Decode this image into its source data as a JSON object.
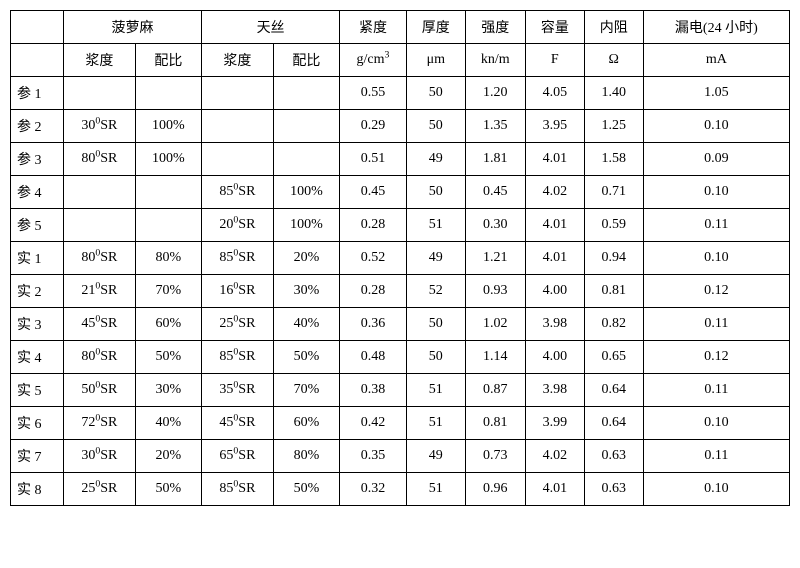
{
  "header1": {
    "bolu": "菠萝麻",
    "tiansi": "天丝",
    "jindu": "紧度",
    "houdu": "厚度",
    "qiangdu": "强度",
    "rongliang": "容量",
    "neizu": "内阻",
    "loudian": "漏电(24 小时)"
  },
  "header2": {
    "jiangdu": "浆度",
    "peibi": "配比",
    "jindu_u": "",
    "houdu_u": "μm",
    "qiangdu_u": "kn/m",
    "rongliang_u": "F",
    "neizu_u": "Ω",
    "loudian_u": "mA"
  },
  "rows": [
    {
      "label": "参 1",
      "bj": "",
      "bp": "",
      "tj": "",
      "tp": "",
      "jd": "0.55",
      "hd": "50",
      "qd": "1.20",
      "rl": "4.05",
      "nz": "1.40",
      "ld": "1.05"
    },
    {
      "label": "参 2",
      "bj": "",
      "bp": "100%",
      "tj": "",
      "tp": "",
      "jd": "0.29",
      "hd": "50",
      "qd": "1.35",
      "rl": "3.95",
      "nz": "1.25",
      "ld": "0.10"
    },
    {
      "label": "参 3",
      "bj": "",
      "bp": "100%",
      "tj": "",
      "tp": "",
      "jd": "0.51",
      "hd": "49",
      "qd": "1.81",
      "rl": "4.01",
      "nz": "1.58",
      "ld": "0.09"
    },
    {
      "label": "参 4",
      "bj": "",
      "bp": "",
      "tj": "",
      "tp": "100%",
      "jd": "0.45",
      "hd": "50",
      "qd": "0.45",
      "rl": "4.02",
      "nz": "0.71",
      "ld": "0.10"
    },
    {
      "label": "参 5",
      "bj": "",
      "bp": "",
      "tj": "",
      "tp": "100%",
      "jd": "0.28",
      "hd": "51",
      "qd": "0.30",
      "rl": "4.01",
      "nz": "0.59",
      "ld": "0.11"
    },
    {
      "label": "实 1",
      "bj": "",
      "bp": "80%",
      "tj": "",
      "tp": "20%",
      "jd": "0.52",
      "hd": "49",
      "qd": "1.21",
      "rl": "4.01",
      "nz": "0.94",
      "ld": "0.10"
    },
    {
      "label": "实 2",
      "bj": "",
      "bp": "70%",
      "tj": "",
      "tp": "30%",
      "jd": "0.28",
      "hd": "52",
      "qd": "0.93",
      "rl": "4.00",
      "nz": "0.81",
      "ld": "0.12"
    },
    {
      "label": "实 3",
      "bj": "",
      "bp": "60%",
      "tj": "",
      "tp": "40%",
      "jd": "0.36",
      "hd": "50",
      "qd": "1.02",
      "rl": "3.98",
      "nz": "0.82",
      "ld": "0.11"
    },
    {
      "label": "实 4",
      "bj": "",
      "bp": "50%",
      "tj": "",
      "tp": "50%",
      "jd": "0.48",
      "hd": "50",
      "qd": "1.14",
      "rl": "4.00",
      "nz": "0.65",
      "ld": "0.12"
    },
    {
      "label": "实 5",
      "bj": "",
      "bp": "30%",
      "tj": "",
      "tp": "70%",
      "jd": "0.38",
      "hd": "51",
      "qd": "0.87",
      "rl": "3.98",
      "nz": "0.64",
      "ld": "0.11"
    },
    {
      "label": "实 6",
      "bj": "",
      "bp": "40%",
      "tj": "",
      "tp": "60%",
      "jd": "0.42",
      "hd": "51",
      "qd": "0.81",
      "rl": "3.99",
      "nz": "0.64",
      "ld": "0.10"
    },
    {
      "label": "实 7",
      "bj": "",
      "bp": "20%",
      "tj": "",
      "tp": "80%",
      "jd": "0.35",
      "hd": "49",
      "qd": "0.73",
      "rl": "4.02",
      "nz": "0.63",
      "ld": "0.11"
    },
    {
      "label": "实 8",
      "bj": "",
      "bp": "50%",
      "tj": "",
      "tp": "50%",
      "jd": "0.32",
      "hd": "51",
      "qd": "0.96",
      "rl": "4.01",
      "nz": "0.63",
      "ld": "0.10"
    }
  ],
  "sr_values": {
    "r1_bj": "30",
    "r2_bj": "80",
    "r3_tj": "85",
    "r4_tj": "20",
    "r5_bj": "80",
    "r5_tj": "85",
    "r6_bj": "21",
    "r6_tj": "16",
    "r7_bj": "45",
    "r7_tj": "25",
    "r8_bj": "80",
    "r8_tj": "85",
    "r9_bj": "50",
    "r9_tj": "35",
    "r10_bj": "72",
    "r10_tj": "45",
    "r11_bj": "30",
    "r11_tj": "65",
    "r12_bj": "25",
    "r12_tj": "85"
  }
}
